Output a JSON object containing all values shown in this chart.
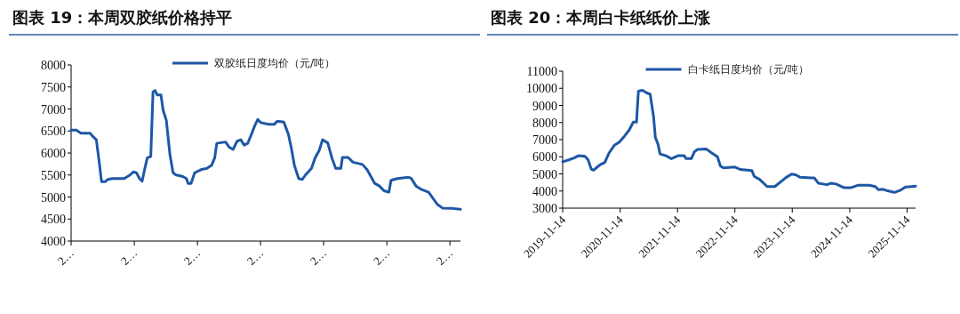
{
  "chart_data": [
    {
      "type": "line",
      "title": "图表 19：本周双胶纸价格持平",
      "legend": "top",
      "grid": false,
      "xlim": [
        "2019-11-14",
        "2026-01-14"
      ],
      "xticks": [
        {
          "value": "2019-11-14",
          "label": "2…"
        },
        {
          "value": "2020-11-14",
          "label": "2…"
        },
        {
          "value": "2021-11-14",
          "label": "2…"
        },
        {
          "value": "2022-11-14",
          "label": "2…"
        },
        {
          "value": "2023-11-14",
          "label": "2…"
        },
        {
          "value": "2024-11-14",
          "label": "2…"
        },
        {
          "value": "2025-11-14",
          "label": "2…"
        }
      ],
      "ylim": [
        4000,
        8000
      ],
      "yticks": [
        4000,
        4500,
        5000,
        5500,
        6000,
        6500,
        7000,
        7500,
        8000
      ],
      "series": [
        {
          "name": "双胶纸日度均价（元/吨）",
          "color": "#1d57a5",
          "x": [
            "2019-11-14",
            "2019-12-14",
            "2020-01-10",
            "2020-03-03",
            "2020-03-20",
            "2020-04-08",
            "2020-04-26",
            "2020-05-08",
            "2020-05-30",
            "2020-06-14",
            "2020-07-08",
            "2020-09-16",
            "2020-10-20",
            "2020-11-08",
            "2020-11-26",
            "2020-12-14",
            "2020-12-29",
            "2021-01-12",
            "2021-01-28",
            "2021-02-17",
            "2021-03-02",
            "2021-03-14",
            "2021-03-26",
            "2021-04-17",
            "2021-04-29",
            "2021-05-18",
            "2021-06-08",
            "2021-06-26",
            "2021-07-14",
            "2021-08-19",
            "2021-09-11",
            "2021-09-21",
            "2021-10-08",
            "2021-10-29",
            "2021-12-04",
            "2022-01-08",
            "2022-02-04",
            "2022-02-22",
            "2022-03-06",
            "2022-04-26",
            "2022-05-17",
            "2022-06-08",
            "2022-07-02",
            "2022-07-23",
            "2022-08-11",
            "2022-09-01",
            "2022-09-23",
            "2022-10-14",
            "2022-10-29",
            "2022-11-16",
            "2022-12-30",
            "2023-02-01",
            "2023-02-19",
            "2023-03-29",
            "2023-04-24",
            "2023-05-12",
            "2023-05-29",
            "2023-06-23",
            "2023-07-14",
            "2023-08-01",
            "2023-09-05",
            "2023-09-26",
            "2023-10-20",
            "2023-11-08",
            "2023-12-08",
            "2024-01-01",
            "2024-01-23",
            "2024-02-22",
            "2024-03-02",
            "2024-04-04",
            "2024-05-02",
            "2024-06-26",
            "2024-07-23",
            "2024-09-05",
            "2024-10-02",
            "2024-10-29",
            "2024-11-26",
            "2024-12-08",
            "2025-01-14",
            "2025-03-20",
            "2025-04-05",
            "2025-05-02",
            "2025-05-29",
            "2025-07-14",
            "2025-08-08",
            "2025-09-01",
            "2025-10-02",
            "2025-12-02",
            "2026-01-14"
          ],
          "values": [
            6520,
            6520,
            6450,
            6450,
            6370,
            6300,
            5750,
            5350,
            5350,
            5400,
            5420,
            5420,
            5500,
            5570,
            5550,
            5420,
            5360,
            5620,
            5890,
            5920,
            7390,
            7420,
            7320,
            7320,
            6980,
            6740,
            5960,
            5550,
            5500,
            5470,
            5420,
            5310,
            5310,
            5550,
            5620,
            5650,
            5720,
            5890,
            6220,
            6250,
            6130,
            6080,
            6270,
            6300,
            6180,
            6220,
            6430,
            6640,
            6760,
            6690,
            6650,
            6650,
            6720,
            6700,
            6430,
            6100,
            5720,
            5420,
            5400,
            5500,
            5650,
            5890,
            6060,
            6300,
            6230,
            5890,
            5650,
            5650,
            5900,
            5900,
            5790,
            5740,
            5620,
            5310,
            5250,
            5140,
            5110,
            5380,
            5420,
            5450,
            5420,
            5250,
            5180,
            5110,
            4970,
            4840,
            4750,
            4740,
            4720
          ]
        }
      ]
    },
    {
      "type": "line",
      "title": "图表 20：本周白卡纸纸价上涨",
      "legend": "top",
      "grid": false,
      "xlim": [
        "2019-11-14",
        "2026-01-07"
      ],
      "xticks": [
        "2019-11-14",
        "2020-11-14",
        "2021-11-14",
        "2022-11-14",
        "2023-11-14",
        "2024-11-14",
        "2025-11-14"
      ],
      "ylim": [
        3000,
        11000
      ],
      "yticks": [
        3000,
        4000,
        5000,
        6000,
        7000,
        8000,
        9000,
        10000,
        11000
      ],
      "series": [
        {
          "name": "白卡纸日度均价（元/吨）",
          "color": "#1d57a5",
          "x": [
            "2019-11-14",
            "2019-12-23",
            "2020-01-28",
            "2020-02-25",
            "2020-04-04",
            "2020-04-24",
            "2020-05-14",
            "2020-05-29",
            "2020-07-08",
            "2020-08-08",
            "2020-09-04",
            "2020-10-08",
            "2020-11-07",
            "2020-12-12",
            "2021-01-11",
            "2021-02-05",
            "2021-02-26",
            "2021-03-10",
            "2021-04-05",
            "2021-04-30",
            "2021-05-24",
            "2021-06-14",
            "2021-06-26",
            "2021-07-12",
            "2021-07-26",
            "2021-08-30",
            "2021-10-06",
            "2021-11-20",
            "2021-12-26",
            "2022-01-08",
            "2022-02-10",
            "2022-03-02",
            "2022-03-22",
            "2022-05-17",
            "2022-06-16",
            "2022-07-26",
            "2022-08-14",
            "2022-09-03",
            "2022-11-14",
            "2022-12-18",
            "2023-03-02",
            "2023-03-17",
            "2023-04-20",
            "2023-06-08",
            "2023-07-26",
            "2023-08-28",
            "2023-10-07",
            "2023-11-10",
            "2023-12-06",
            "2024-01-04",
            "2024-03-14",
            "2024-04-02",
            "2024-04-29",
            "2024-06-22",
            "2024-07-20",
            "2024-08-19",
            "2024-10-10",
            "2024-11-20",
            "2025-01-08",
            "2025-03-18",
            "2025-04-26",
            "2025-05-16",
            "2025-06-15",
            "2025-07-14",
            "2025-08-25",
            "2025-10-03",
            "2025-11-04",
            "2025-12-14",
            "2026-01-07"
          ],
          "values": [
            5710,
            5820,
            5940,
            6070,
            6030,
            5820,
            5280,
            5220,
            5530,
            5670,
            6220,
            6670,
            6850,
            7210,
            7570,
            8020,
            8020,
            9830,
            9880,
            9740,
            9650,
            8380,
            7120,
            6760,
            6160,
            6070,
            5890,
            6070,
            6070,
            5890,
            5890,
            6300,
            6430,
            6450,
            6250,
            6000,
            5460,
            5350,
            5400,
            5260,
            5200,
            4860,
            4680,
            4260,
            4260,
            4500,
            4800,
            4990,
            4950,
            4800,
            4770,
            4770,
            4450,
            4370,
            4460,
            4410,
            4190,
            4190,
            4340,
            4340,
            4260,
            4080,
            4100,
            4010,
            3920,
            4050,
            4230,
            4260,
            4280
          ]
        }
      ]
    }
  ]
}
